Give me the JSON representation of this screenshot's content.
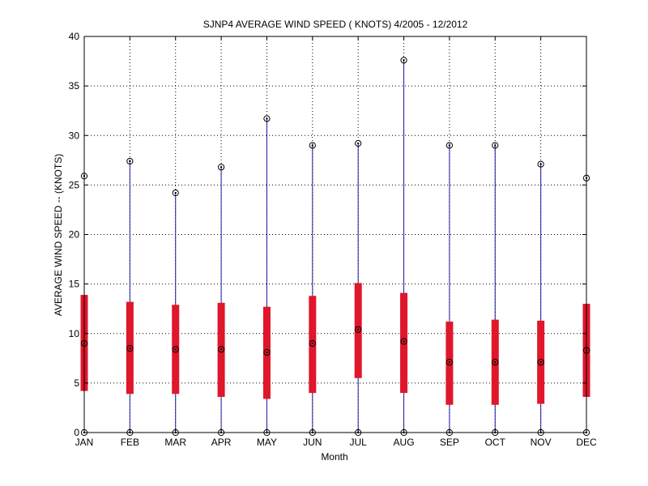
{
  "chart_data": {
    "type": "box",
    "title": "SJNP4  AVERAGE WIND SPEED ( KNOTS) 4/2005 - 12/2012",
    "xlabel": "Month",
    "ylabel": "AVERAGE WIND SPEED -- (KNOTS)",
    "ylim": [
      0,
      40
    ],
    "yticks": [
      0,
      5,
      10,
      15,
      20,
      25,
      30,
      35,
      40
    ],
    "grid": true,
    "categories": [
      "JAN",
      "FEB",
      "MAR",
      "APR",
      "MAY",
      "JUN",
      "JUL",
      "AUG",
      "SEP",
      "OCT",
      "NOV",
      "DEC"
    ],
    "min": [
      0,
      0,
      0,
      0,
      0,
      0,
      0,
      0,
      0,
      0,
      0,
      0
    ],
    "q1": [
      4.2,
      3.9,
      3.9,
      3.6,
      3.4,
      4.0,
      5.5,
      4.0,
      2.8,
      2.8,
      2.9,
      3.6
    ],
    "median": [
      9.0,
      8.5,
      8.4,
      8.4,
      8.1,
      9.0,
      10.4,
      9.2,
      7.1,
      7.1,
      7.1,
      8.3
    ],
    "q3": [
      13.9,
      13.2,
      12.9,
      13.1,
      12.7,
      13.8,
      15.1,
      14.1,
      11.2,
      11.4,
      11.3,
      13.0
    ],
    "max": [
      25.9,
      27.4,
      24.2,
      26.8,
      31.7,
      29.0,
      29.2,
      37.6,
      29.0,
      29.0,
      27.1,
      25.7
    ],
    "colors": {
      "whisker": "#1a1aa6",
      "box": "#e0162b",
      "grid": "#000000"
    }
  }
}
